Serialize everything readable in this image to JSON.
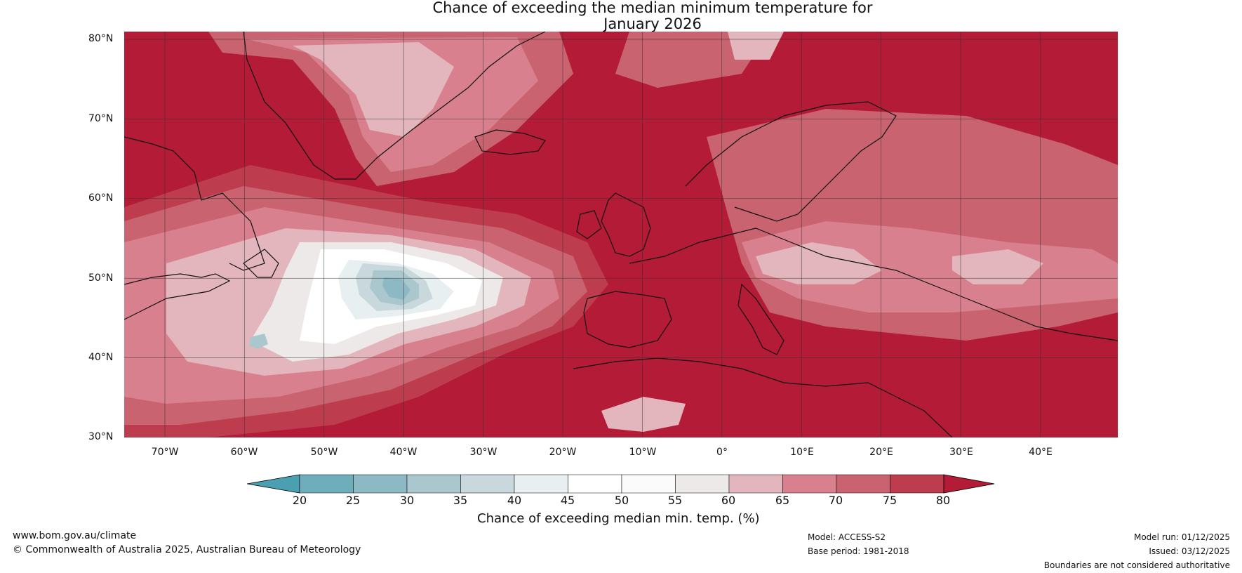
{
  "title_line1": "Chance of exceeding the median minimum temperature for",
  "title_line2": "January 2026",
  "lat_labels": [
    "80°N",
    "70°N",
    "60°N",
    "50°N",
    "40°N",
    "30°N"
  ],
  "lon_labels": [
    "70°W",
    "60°W",
    "50°W",
    "40°W",
    "30°W",
    "20°W",
    "10°W",
    "0°",
    "10°E",
    "20°E",
    "30°E",
    "40°E"
  ],
  "colorbar": {
    "ticks": [
      "20",
      "25",
      "30",
      "35",
      "40",
      "45",
      "50",
      "55",
      "60",
      "65",
      "70",
      "75",
      "80"
    ],
    "colors": [
      "#4a9fb0",
      "#6eaebb",
      "#8db9c4",
      "#aac7ce",
      "#c9d8dc",
      "#e8eff0",
      "#ffffff",
      "#fbfbfb",
      "#ece9e8",
      "#e2b6bc",
      "#d9808e",
      "#c9636f",
      "#bd3c4d",
      "#b31b36"
    ],
    "label": "Chance of exceeding median min. temp. (%)"
  },
  "map_colors": {
    "ocean_base": "#b31b36",
    "band75": "#bd3c4d",
    "band70": "#c9636f",
    "band65": "#d9808e",
    "band60": "#e2b6bc",
    "band55": "#ece9e8",
    "band45": "#ffffff",
    "band40": "#e8eff0",
    "band35": "#c9d8dc",
    "band30": "#aac7ce",
    "band25": "#8db9c4",
    "coast": "#111111",
    "border": "#888888",
    "grid": "#333333"
  },
  "footer": {
    "website": "www.bom.gov.au/climate",
    "copyright": "© Commonwealth of Australia 2025, Australian Bureau of Meteorology",
    "model": "Model: ACCESS-S2",
    "base_period": "Base period: 1981-2018",
    "model_run": "Model run: 01/12/2025",
    "issued": "Issued: 03/12/2025",
    "disclaimer": "Boundaries are not considered authoritative"
  }
}
